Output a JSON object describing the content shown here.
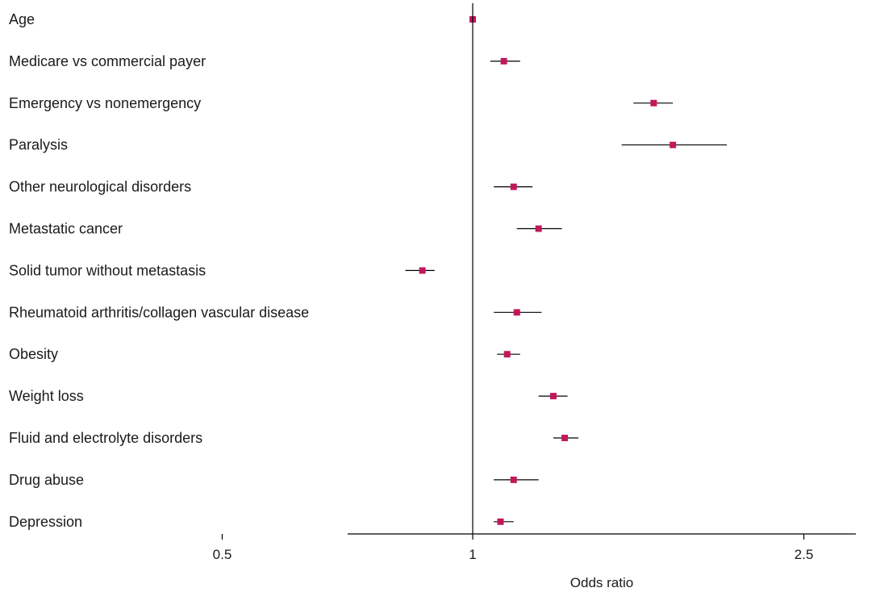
{
  "chart_data": {
    "type": "scatter",
    "subtype": "forest-plot",
    "xlabel": "Odds ratio",
    "x_scale": "log",
    "xlim": [
      0.5,
      2.5
    ],
    "x_ticks": [
      0.5,
      1,
      2.5
    ],
    "tick_labels": [
      "0.5",
      "1",
      "2.5"
    ],
    "reference_line": 1,
    "marker_color": "#c2185b",
    "line_color": "#000000",
    "rows": [
      {
        "label": "Age",
        "or": 1.0,
        "ci": [
          1.0,
          1.0
        ]
      },
      {
        "label": "Medicare vs commercial payer",
        "or": 1.09,
        "ci": [
          1.05,
          1.14
        ]
      },
      {
        "label": "Emergency vs nonemergency",
        "or": 1.65,
        "ci": [
          1.56,
          1.74
        ]
      },
      {
        "label": "Paralysis",
        "or": 1.74,
        "ci": [
          1.51,
          2.02
        ]
      },
      {
        "label": "Other neurological disorders",
        "or": 1.12,
        "ci": [
          1.06,
          1.18
        ]
      },
      {
        "label": "Metastatic cancer",
        "or": 1.2,
        "ci": [
          1.13,
          1.28
        ]
      },
      {
        "label": "Solid tumor without metastasis",
        "or": 0.87,
        "ci": [
          0.83,
          0.9
        ]
      },
      {
        "label": "Rheumatoid arthritis/collagen vascular disease",
        "or": 1.13,
        "ci": [
          1.06,
          1.21
        ]
      },
      {
        "label": "Obesity",
        "or": 1.1,
        "ci": [
          1.07,
          1.14
        ]
      },
      {
        "label": "Weight loss",
        "or": 1.25,
        "ci": [
          1.2,
          1.3
        ]
      },
      {
        "label": "Fluid and electrolyte disorders",
        "or": 1.29,
        "ci": [
          1.25,
          1.34
        ]
      },
      {
        "label": "Drug abuse",
        "or": 1.12,
        "ci": [
          1.06,
          1.2
        ]
      },
      {
        "label": "Depression",
        "or": 1.08,
        "ci": [
          1.06,
          1.12
        ]
      }
    ]
  }
}
